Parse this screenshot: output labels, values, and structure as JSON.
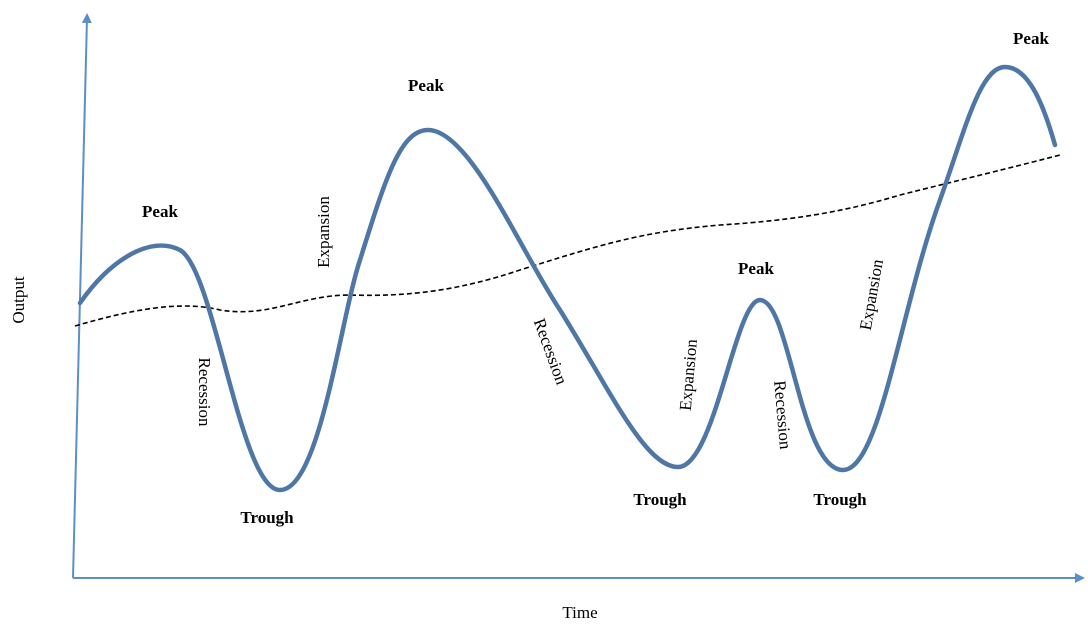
{
  "axes": {
    "y_label": "Output",
    "x_label": "Time"
  },
  "labels": {
    "peaks": [
      "Peak",
      "Peak",
      "Peak",
      "Peak"
    ],
    "troughs": [
      "Trough",
      "Trough",
      "Trough"
    ],
    "recessions": [
      "Recession",
      "Recession",
      "Recession"
    ],
    "expansions": [
      "Expansion",
      "Expansion",
      "Expansion"
    ]
  }
}
